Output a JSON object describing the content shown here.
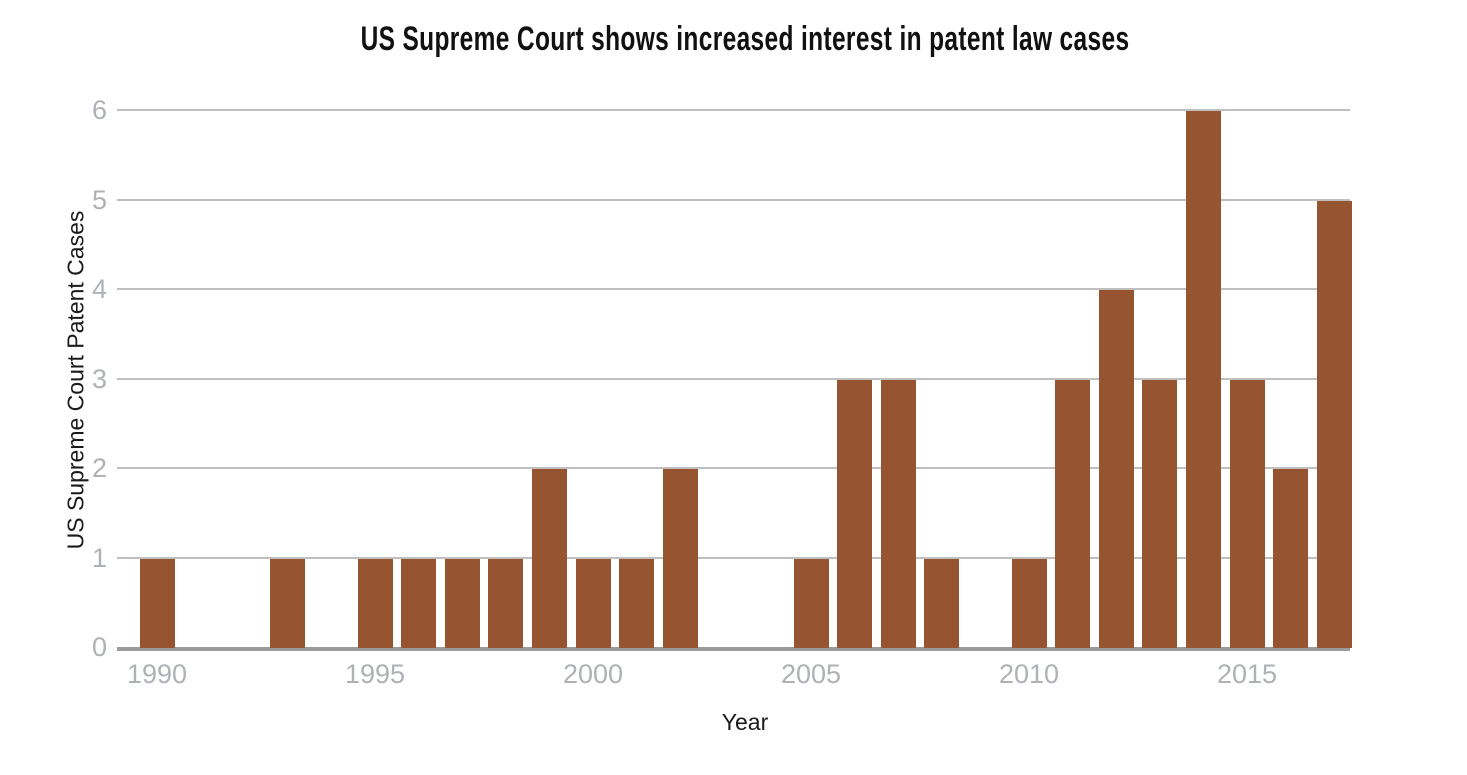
{
  "chart_data": {
    "type": "bar",
    "title": "US Supreme Court shows increased interest in patent law cases",
    "xlabel": "Year",
    "ylabel": "US Supreme Court Patent Cases",
    "years": [
      1990,
      1991,
      1992,
      1993,
      1994,
      1995,
      1996,
      1997,
      1998,
      1999,
      2000,
      2001,
      2002,
      2003,
      2004,
      2005,
      2006,
      2007,
      2008,
      2009,
      2010,
      2011,
      2012,
      2013,
      2014,
      2015,
      2016,
      2017
    ],
    "values": [
      1,
      0,
      0,
      1,
      0,
      1,
      1,
      1,
      1,
      2,
      1,
      1,
      2,
      0,
      0,
      1,
      3,
      3,
      1,
      0,
      1,
      3,
      4,
      3,
      6,
      3,
      2,
      5
    ],
    "x_tick_labels": [
      "1990",
      "1995",
      "2000",
      "2005",
      "2010",
      "2015"
    ],
    "x_tick_years": [
      1990,
      1995,
      2000,
      2005,
      2010,
      2015
    ],
    "y_tick_labels": [
      "0",
      "1",
      "2",
      "3",
      "4",
      "5",
      "6"
    ],
    "ylim": [
      0,
      6
    ],
    "grid": "horizontal-only",
    "legend": "none",
    "bar_color": "#975431",
    "gridline_color": "#a9a9a9",
    "axis_line_color": "#9b9b9b",
    "tick_label_color": "#aeb1b6",
    "text_color": "#1a1a1a"
  }
}
